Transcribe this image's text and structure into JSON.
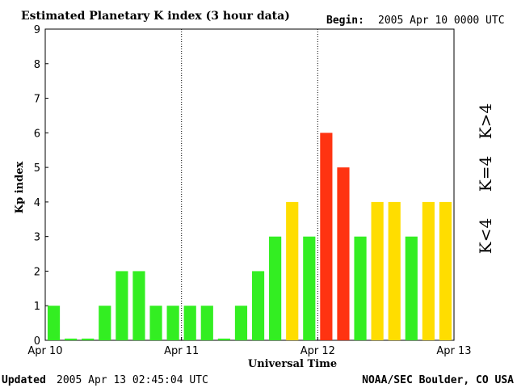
{
  "header": {
    "title": "Estimated Planetary K index (3 hour data)",
    "begin_label": "Begin:",
    "begin_value": "2005 Apr 10 0000 UTC"
  },
  "footer": {
    "updated_label": "Updated",
    "updated_value": "2005 Apr 13 02:45:04 UTC",
    "source": "NOAA/SEC Boulder, CO USA"
  },
  "legend": {
    "items": [
      {
        "label": "K<4",
        "color": "#33ee22"
      },
      {
        "label": "K=4",
        "color": "#ffdd00"
      },
      {
        "label": "K>4",
        "color": "#ff3311"
      }
    ]
  },
  "chart_data": {
    "type": "bar",
    "title": "Estimated Planetary K index (3 hour data)",
    "xlabel": "Universal Time",
    "ylabel": "Kp index",
    "ylim": [
      0,
      9
    ],
    "yticks": [
      "0",
      "1",
      "2",
      "3",
      "4",
      "5",
      "6",
      "7",
      "8",
      "9"
    ],
    "xticks": [
      "Apr 10",
      "Apr 11",
      "Apr 12",
      "Apr 13"
    ],
    "bar_count": 24,
    "values": [
      1,
      0.05,
      0.05,
      1,
      2,
      2,
      1,
      1,
      1,
      1,
      0.05,
      1,
      2,
      3,
      4,
      3,
      6,
      5,
      3,
      4,
      4,
      3,
      4,
      4
    ],
    "colors": {
      "low": "#33ee22",
      "equal": "#ffdd00",
      "high": "#ff3311"
    },
    "grid": false
  }
}
